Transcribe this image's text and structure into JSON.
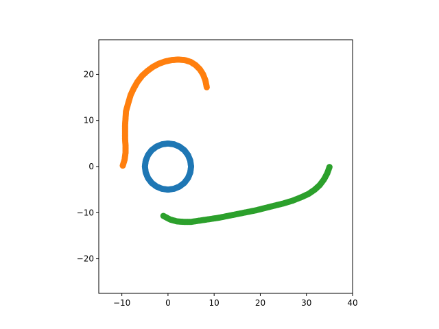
{
  "chart_data": {
    "type": "scatter",
    "title": "",
    "xlabel": "",
    "ylabel": "",
    "xlim": [
      -15,
      40
    ],
    "ylim": [
      -27.5,
      27.5
    ],
    "xticks": [
      -10,
      0,
      10,
      20,
      30,
      40
    ],
    "yticks": [
      -20,
      -10,
      0,
      10,
      20
    ],
    "xtick_labels": [
      "−10",
      "0",
      "10",
      "20",
      "30",
      "40"
    ],
    "ytick_labels": [
      "−20",
      "−10",
      "0",
      "10",
      "20"
    ],
    "grid": false,
    "legend": "none",
    "series": [
      {
        "color": "#1f77b4",
        "marker": "circle",
        "points": [
          [
            5.0,
            0.0
          ],
          [
            4.83,
            1.29
          ],
          [
            4.33,
            2.5
          ],
          [
            3.54,
            3.54
          ],
          [
            2.5,
            4.33
          ],
          [
            1.29,
            4.83
          ],
          [
            0.0,
            5.0
          ],
          [
            -1.29,
            4.83
          ],
          [
            -2.5,
            4.33
          ],
          [
            -3.54,
            3.54
          ],
          [
            -4.33,
            2.5
          ],
          [
            -4.83,
            1.29
          ],
          [
            -5.0,
            0.0
          ],
          [
            -4.83,
            -1.29
          ],
          [
            -4.33,
            -2.5
          ],
          [
            -3.54,
            -3.54
          ],
          [
            -2.5,
            -4.33
          ],
          [
            -1.29,
            -4.83
          ],
          [
            0.0,
            -5.0
          ],
          [
            1.29,
            -4.83
          ],
          [
            2.5,
            -4.33
          ],
          [
            3.54,
            -3.54
          ],
          [
            4.33,
            -2.5
          ],
          [
            4.83,
            -1.29
          ]
        ]
      },
      {
        "color": "#ff7f0e",
        "marker": "circle",
        "points": [
          [
            -9.8,
            0.2
          ],
          [
            -9.4,
            1.5
          ],
          [
            -9.2,
            3.0
          ],
          [
            -9.2,
            4.5
          ],
          [
            -9.3,
            6.0
          ],
          [
            -9.3,
            7.5
          ],
          [
            -9.3,
            9.0
          ],
          [
            -9.2,
            10.5
          ],
          [
            -9.1,
            12.0
          ],
          [
            -8.6,
            13.8
          ],
          [
            -8.1,
            15.5
          ],
          [
            -7.4,
            17.0
          ],
          [
            -6.6,
            18.4
          ],
          [
            -5.6,
            19.7
          ],
          [
            -4.5,
            20.7
          ],
          [
            -3.3,
            21.6
          ],
          [
            -2.0,
            22.3
          ],
          [
            -0.6,
            22.8
          ],
          [
            0.8,
            23.1
          ],
          [
            2.2,
            23.2
          ],
          [
            3.6,
            23.1
          ],
          [
            4.9,
            22.7
          ],
          [
            6.0,
            22.0
          ],
          [
            6.9,
            21.1
          ],
          [
            7.6,
            20.0
          ],
          [
            8.1,
            18.7
          ],
          [
            8.4,
            17.2
          ]
        ]
      },
      {
        "color": "#2ca02c",
        "marker": "circle",
        "points": [
          [
            -1.0,
            -10.7
          ],
          [
            0.5,
            -11.5
          ],
          [
            2.0,
            -11.9
          ],
          [
            3.5,
            -12.0
          ],
          [
            5.0,
            -12.0
          ],
          [
            7.0,
            -11.7
          ],
          [
            9.0,
            -11.4
          ],
          [
            11.0,
            -11.1
          ],
          [
            13.0,
            -10.7
          ],
          [
            15.0,
            -10.3
          ],
          [
            17.0,
            -9.9
          ],
          [
            19.0,
            -9.5
          ],
          [
            21.0,
            -9.0
          ],
          [
            23.0,
            -8.5
          ],
          [
            25.0,
            -8.0
          ],
          [
            27.0,
            -7.4
          ],
          [
            29.0,
            -6.6
          ],
          [
            30.5,
            -5.9
          ],
          [
            31.8,
            -5.0
          ],
          [
            32.9,
            -4.0
          ],
          [
            33.8,
            -2.8
          ],
          [
            34.5,
            -1.5
          ],
          [
            35.0,
            -0.1
          ]
        ]
      }
    ]
  }
}
